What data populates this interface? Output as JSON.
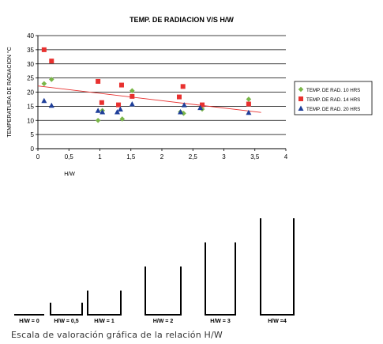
{
  "chart_data": {
    "type": "scatter",
    "title": "TEMP. DE RADIACION V/S H/W",
    "xlabel": "H/W",
    "ylabel": "TEMPERATURA DE RADIACION °C",
    "xlim": [
      0,
      4
    ],
    "ylim": [
      0,
      40
    ],
    "x_ticks": [
      "0",
      "0,5",
      "1",
      "1,5",
      "2",
      "2,5",
      "3",
      "3,5",
      "4"
    ],
    "y_ticks": [
      "0",
      "5",
      "10",
      "15",
      "20",
      "25",
      "30",
      "35",
      "40"
    ],
    "grid": "horizontal",
    "legend_position": "right",
    "series": [
      {
        "name": "TEMP. DE RAD. 10 HRS",
        "color": "#7ab648",
        "marker": "diamond",
        "points": [
          [
            0.1,
            23
          ],
          [
            0.22,
            24.5
          ],
          [
            0.97,
            10
          ],
          [
            1.04,
            13.5
          ],
          [
            1.36,
            10.5
          ],
          [
            1.52,
            20.5
          ],
          [
            2.3,
            13
          ],
          [
            2.35,
            12.5
          ],
          [
            2.65,
            14
          ],
          [
            3.4,
            17.5
          ]
        ]
      },
      {
        "name": "TEMP. DE RAD. 14 HRS",
        "color": "#e8312f",
        "marker": "square",
        "points": [
          [
            0.1,
            35
          ],
          [
            0.22,
            31
          ],
          [
            0.97,
            23.8
          ],
          [
            1.03,
            16.3
          ],
          [
            1.3,
            15.5
          ],
          [
            1.35,
            22.5
          ],
          [
            1.52,
            18.5
          ],
          [
            2.28,
            18.3
          ],
          [
            2.34,
            22
          ],
          [
            2.65,
            15.5
          ],
          [
            3.4,
            15.8
          ]
        ]
      },
      {
        "name": "TEMP. DE RAD. 20 HRS",
        "color": "#1f3f9a",
        "marker": "triangle",
        "points": [
          [
            0.1,
            17
          ],
          [
            0.22,
            15.3
          ],
          [
            0.97,
            13.5
          ],
          [
            1.04,
            13
          ],
          [
            1.28,
            13
          ],
          [
            1.33,
            14
          ],
          [
            1.52,
            15.8
          ],
          [
            2.3,
            13
          ],
          [
            2.36,
            15.5
          ],
          [
            2.62,
            14.5
          ],
          [
            3.4,
            12.8
          ]
        ]
      }
    ],
    "trendline": {
      "color": "#e8312f",
      "x": [
        0,
        3.6
      ],
      "y": [
        22.2,
        12.8
      ]
    }
  },
  "scale": {
    "caption": "Escala de valoración gráfica de la relación H/W",
    "items": [
      {
        "label": "H/W = 0",
        "ratio": 0
      },
      {
        "label": "H/W = 0,5",
        "ratio": 0.5
      },
      {
        "label": "H/W = 1",
        "ratio": 1
      },
      {
        "label": "H/W = 2",
        "ratio": 2
      },
      {
        "label": "H/W = 3",
        "ratio": 3
      },
      {
        "label": "H/W =4",
        "ratio": 4
      }
    ]
  }
}
